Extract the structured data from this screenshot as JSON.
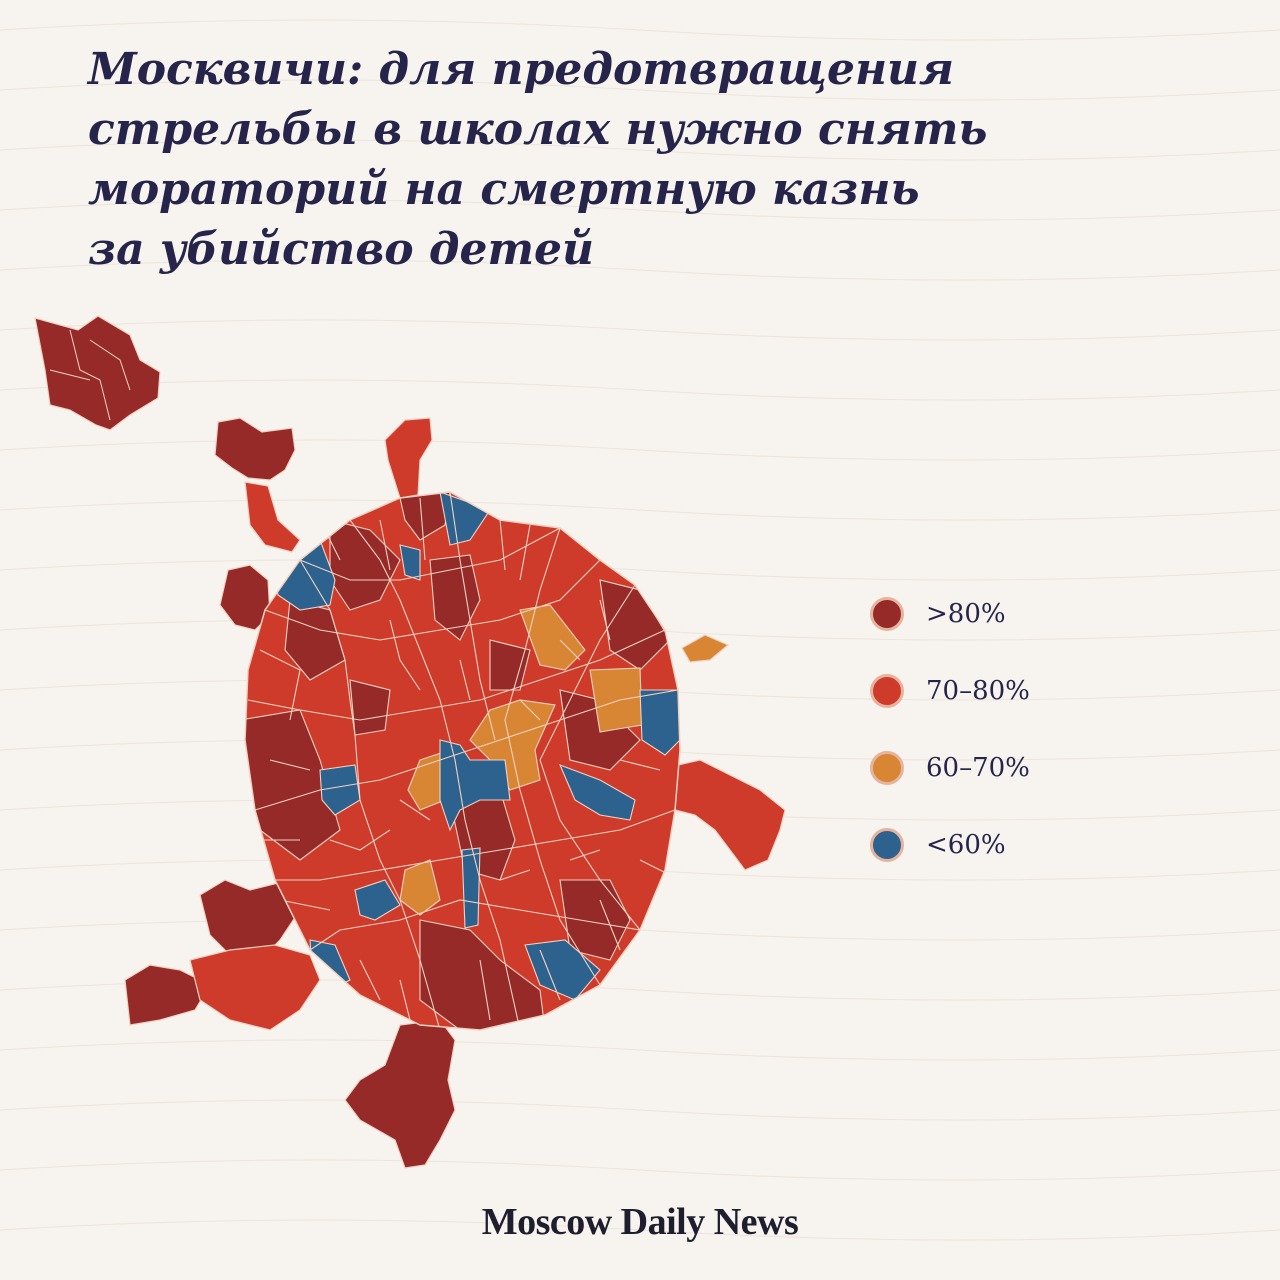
{
  "title": {
    "lines": [
      "Москвичи: для предотвращения",
      "стрельбы в школах нужно снять",
      "мораторий на смертную казнь",
      "за убийство детей"
    ]
  },
  "colors": {
    "background": "#f7f3ee",
    "above_80": "#952a28",
    "between_70_80": "#cf3b2b",
    "between_60_70": "#d98634",
    "below_60": "#2d628f",
    "border": "#f0d2c2",
    "text": "#26244a"
  },
  "legend": {
    "items": [
      {
        "label": ">80%",
        "color": "#952a28",
        "icon": "dark-red-circle"
      },
      {
        "label": "70–80%",
        "color": "#cf3b2b",
        "icon": "red-circle"
      },
      {
        "label": "60–70%",
        "color": "#d98634",
        "icon": "orange-circle"
      },
      {
        "label": "<60%",
        "color": "#2d628f",
        "icon": "blue-circle"
      }
    ]
  },
  "brand": {
    "name": "Moscow Daily News"
  }
}
